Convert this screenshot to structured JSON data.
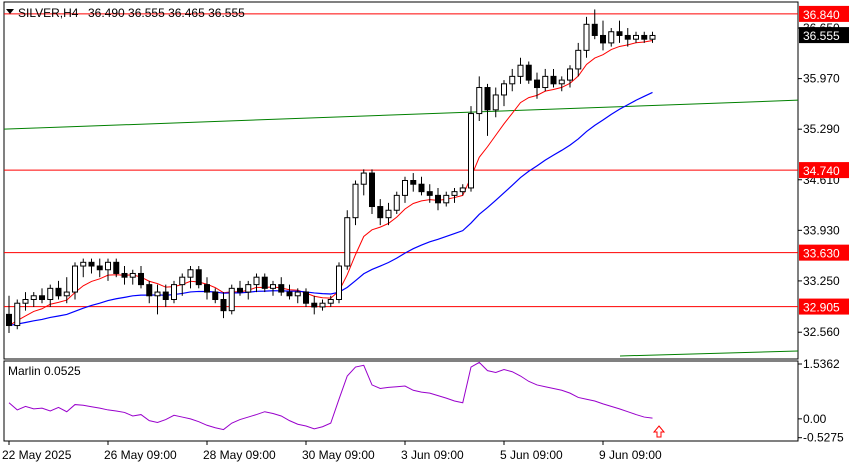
{
  "header": {
    "symbol": "SILVER,H4",
    "ohlc": "36.490 36.555 36.465 36.555"
  },
  "chart_data": {
    "type": "candlestick",
    "timeframe": "H4",
    "price_axis": {
      "range": [
        32.2,
        37.0
      ],
      "ticks": [
        "36.650",
        "35.970",
        "35.290",
        "34.610",
        "33.930",
        "33.250",
        "32.560"
      ]
    },
    "time_axis": {
      "labels": [
        "22 May 2025",
        "26 May 09:00",
        "28 May 09:00",
        "30 May 09:00",
        "3 Jun 09:00",
        "5 Jun 09:00",
        "9 Jun 09:00"
      ]
    },
    "levels": [
      {
        "value": 36.84,
        "label": "36.840",
        "color": "#ff0000"
      },
      {
        "value": 34.74,
        "label": "34.740",
        "color": "#ff0000"
      },
      {
        "value": 33.63,
        "label": "33.630",
        "color": "#ff0000"
      },
      {
        "value": 32.905,
        "label": "32.905",
        "color": "#ff0000"
      }
    ],
    "current_price": {
      "value": 36.555,
      "label": "36.555"
    },
    "trendline": {
      "color": "#008000",
      "from": 35.29,
      "to": 35.68
    },
    "moving_averages": [
      {
        "color": "#ff0000",
        "role": "fast MA"
      },
      {
        "color": "#0000ff",
        "role": "slow MA"
      }
    ],
    "candles": [
      [
        32.8,
        33.05,
        32.55,
        32.65
      ],
      [
        32.65,
        33.0,
        32.6,
        32.95
      ],
      [
        32.95,
        33.1,
        32.85,
        33.0
      ],
      [
        33.0,
        33.1,
        32.9,
        33.05
      ],
      [
        33.05,
        33.15,
        32.95,
        33.0
      ],
      [
        33.0,
        33.2,
        32.9,
        33.15
      ],
      [
        33.15,
        33.25,
        33.0,
        33.05
      ],
      [
        33.05,
        33.3,
        32.95,
        33.1
      ],
      [
        33.1,
        33.5,
        33.0,
        33.45
      ],
      [
        33.45,
        33.55,
        33.3,
        33.5
      ],
      [
        33.5,
        33.55,
        33.35,
        33.45
      ],
      [
        33.45,
        33.55,
        33.3,
        33.4
      ],
      [
        33.4,
        33.55,
        33.25,
        33.5
      ],
      [
        33.5,
        33.55,
        33.3,
        33.35
      ],
      [
        33.35,
        33.45,
        33.2,
        33.3
      ],
      [
        33.3,
        33.4,
        33.2,
        33.35
      ],
      [
        33.35,
        33.45,
        33.15,
        33.2
      ],
      [
        33.2,
        33.25,
        32.95,
        33.05
      ],
      [
        33.05,
        33.2,
        32.8,
        33.1
      ],
      [
        33.1,
        33.2,
        32.9,
        33.0
      ],
      [
        33.0,
        33.25,
        32.95,
        33.2
      ],
      [
        33.2,
        33.35,
        33.05,
        33.3
      ],
      [
        33.3,
        33.45,
        33.15,
        33.4
      ],
      [
        33.4,
        33.45,
        33.15,
        33.2
      ],
      [
        33.2,
        33.3,
        33.0,
        33.1
      ],
      [
        33.1,
        33.15,
        32.95,
        33.0
      ],
      [
        33.0,
        33.1,
        32.75,
        32.85
      ],
      [
        32.85,
        33.2,
        32.8,
        33.15
      ],
      [
        33.15,
        33.25,
        33.05,
        33.1
      ],
      [
        33.1,
        33.25,
        33.0,
        33.2
      ],
      [
        33.2,
        33.35,
        33.1,
        33.3
      ],
      [
        33.3,
        33.35,
        33.1,
        33.15
      ],
      [
        33.15,
        33.25,
        33.05,
        33.2
      ],
      [
        33.2,
        33.3,
        33.05,
        33.1
      ],
      [
        33.1,
        33.2,
        33.0,
        33.05
      ],
      [
        33.05,
        33.15,
        32.95,
        33.1
      ],
      [
        33.1,
        33.15,
        32.9,
        32.95
      ],
      [
        32.95,
        33.05,
        32.8,
        32.9
      ],
      [
        32.9,
        33.0,
        32.85,
        32.95
      ],
      [
        32.95,
        33.05,
        32.9,
        33.0
      ],
      [
        33.0,
        33.5,
        32.95,
        33.45
      ],
      [
        33.45,
        34.2,
        33.4,
        34.1
      ],
      [
        34.1,
        34.6,
        34.0,
        34.55
      ],
      [
        34.55,
        34.75,
        34.4,
        34.7
      ],
      [
        34.7,
        34.75,
        34.15,
        34.25
      ],
      [
        34.25,
        34.35,
        34.0,
        34.1
      ],
      [
        34.1,
        34.3,
        34.0,
        34.2
      ],
      [
        34.2,
        34.45,
        34.15,
        34.4
      ],
      [
        34.4,
        34.65,
        34.3,
        34.6
      ],
      [
        34.6,
        34.7,
        34.45,
        34.55
      ],
      [
        34.55,
        34.65,
        34.4,
        34.45
      ],
      [
        34.45,
        34.55,
        34.3,
        34.4
      ],
      [
        34.4,
        34.5,
        34.2,
        34.3
      ],
      [
        34.3,
        34.45,
        34.25,
        34.4
      ],
      [
        34.4,
        34.5,
        34.3,
        34.45
      ],
      [
        34.45,
        34.55,
        34.4,
        34.5
      ],
      [
        34.5,
        35.6,
        34.45,
        35.5
      ],
      [
        35.5,
        36.0,
        35.4,
        35.85
      ],
      [
        35.85,
        35.9,
        35.2,
        35.55
      ],
      [
        35.55,
        35.85,
        35.45,
        35.75
      ],
      [
        35.75,
        35.95,
        35.6,
        35.9
      ],
      [
        35.9,
        36.1,
        35.8,
        36.0
      ],
      [
        36.0,
        36.25,
        35.9,
        36.15
      ],
      [
        36.15,
        36.2,
        35.9,
        35.95
      ],
      [
        35.95,
        36.05,
        35.7,
        35.85
      ],
      [
        35.85,
        36.1,
        35.8,
        36.0
      ],
      [
        36.0,
        36.1,
        35.85,
        35.9
      ],
      [
        35.9,
        36.0,
        35.8,
        35.95
      ],
      [
        35.95,
        36.15,
        35.85,
        36.1
      ],
      [
        36.1,
        36.45,
        36.0,
        36.35
      ],
      [
        36.35,
        36.8,
        36.25,
        36.7
      ],
      [
        36.7,
        36.9,
        36.5,
        36.55
      ],
      [
        36.55,
        36.75,
        36.35,
        36.45
      ],
      [
        36.45,
        36.65,
        36.4,
        36.6
      ],
      [
        36.6,
        36.75,
        36.45,
        36.55
      ],
      [
        36.55,
        36.65,
        36.4,
        36.5
      ],
      [
        36.5,
        36.6,
        36.45,
        36.55
      ],
      [
        36.55,
        36.6,
        36.45,
        36.5
      ],
      [
        36.5,
        36.6,
        36.45,
        36.55
      ]
    ],
    "indicator": {
      "name": "Marlin 0.0525",
      "ticks": [
        "1.5362",
        "0.00",
        "-0.5275"
      ],
      "range": [
        -0.62,
        1.62
      ],
      "color": "#9900cc",
      "values": [
        0.45,
        0.25,
        0.35,
        0.28,
        0.3,
        0.22,
        0.32,
        0.2,
        0.4,
        0.38,
        0.34,
        0.3,
        0.25,
        0.22,
        0.18,
        0.08,
        0.12,
        -0.05,
        -0.1,
        -0.02,
        0.1,
        0.05,
        0.0,
        -0.08,
        -0.18,
        -0.25,
        -0.3,
        -0.12,
        -0.02,
        0.05,
        0.12,
        0.2,
        0.15,
        0.08,
        -0.05,
        -0.15,
        -0.2,
        -0.28,
        -0.22,
        -0.12,
        0.55,
        1.2,
        1.45,
        1.5,
        0.95,
        0.85,
        0.88,
        0.9,
        0.92,
        0.8,
        0.75,
        0.72,
        0.65,
        0.58,
        0.5,
        0.45,
        1.45,
        1.58,
        1.35,
        1.3,
        1.38,
        1.32,
        1.2,
        1.05,
        0.95,
        0.9,
        0.85,
        0.8,
        0.72,
        0.6,
        0.55,
        0.5,
        0.42,
        0.35,
        0.28,
        0.2,
        0.12,
        0.05,
        0.02
      ],
      "signal_arrow": {
        "color": "#ff0000",
        "direction": "up"
      }
    }
  }
}
